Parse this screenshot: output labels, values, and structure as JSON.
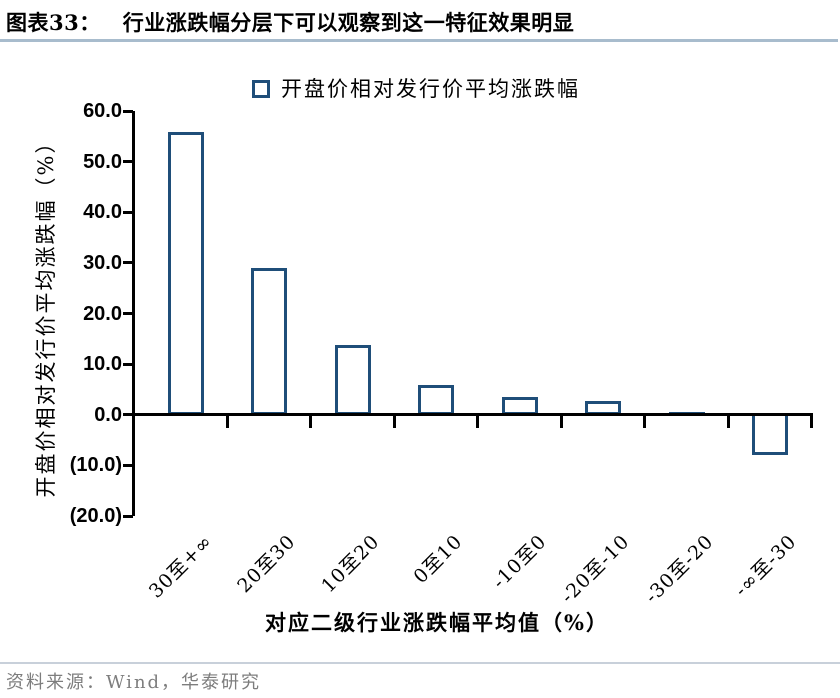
{
  "header": {
    "figure_label": "图表33：",
    "title": "行业涨跌幅分层下可以观察到这一特征效果明显"
  },
  "footer": {
    "source": "资料来源：Wind，华泰研究"
  },
  "colors": {
    "bar_outline": "#1f4e79",
    "axis": "#000000",
    "title_rule": "#a8bccd",
    "footer_rule": "#c8d0da",
    "footer_text": "#7d7d7d"
  },
  "chart_data": {
    "type": "bar",
    "title": "",
    "legend": [
      "开盘价相对发行价平均涨跌幅"
    ],
    "legend_position": "top",
    "legend_marker": "open-square",
    "categories": [
      "30至+∞",
      "20至30",
      "10至20",
      "0至10",
      "-10至0",
      "-20至-10",
      "-30至-20",
      "-∞至-30"
    ],
    "values": [
      55.8,
      29.0,
      13.8,
      5.9,
      3.6,
      2.8,
      0.4,
      -8.0
    ],
    "xlabel": "对应二级行业涨跌幅平均值（%）",
    "ylabel": "开盘价相对发行价平均涨跌幅（%）",
    "ylim": [
      -20,
      60
    ],
    "ytick_step": 10,
    "ytick_labels": [
      "60.0",
      "50.0",
      "40.0",
      "30.0",
      "20.0",
      "10.0",
      "0.0",
      "(10.0)",
      "(20.0)"
    ],
    "grid": false,
    "bar_fill": "#ffffff"
  }
}
